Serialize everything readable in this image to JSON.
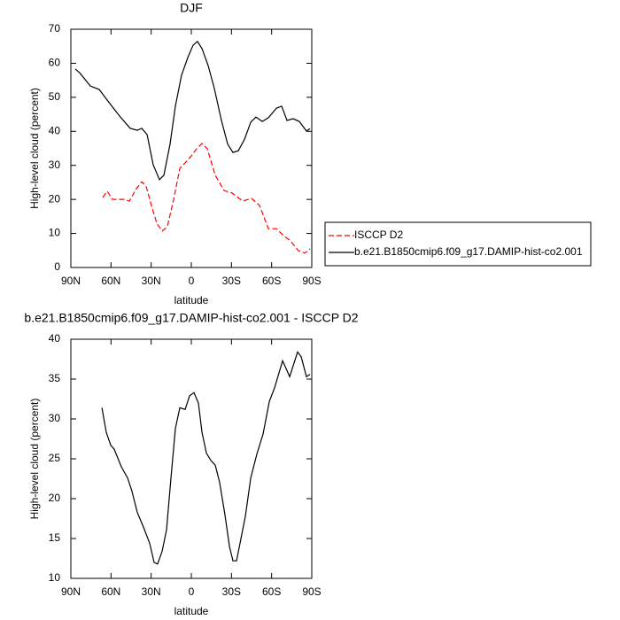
{
  "chart_data": [
    {
      "type": "line",
      "title": "DJF",
      "x_label": "latitude",
      "y_label": "High-level cloud (percent)",
      "xlim": [
        90,
        -90
      ],
      "xticks": [
        {
          "value": 90,
          "label": "90N"
        },
        {
          "value": 60,
          "label": "60N"
        },
        {
          "value": 30,
          "label": "30N"
        },
        0,
        {
          "value": -30,
          "label": "30S"
        },
        {
          "value": -60,
          "label": "60S"
        },
        {
          "value": -90,
          "label": "90S"
        }
      ],
      "ylim": [
        0,
        70
      ],
      "yticks": [
        0,
        10,
        20,
        30,
        40,
        50,
        60,
        70
      ],
      "legend": "right",
      "series": [
        {
          "name": "ISCCP D2",
          "color": "#ff0000",
          "dash": true,
          "x": [
            66.2,
            62.9,
            58.9,
            50.3,
            46.3,
            41,
            37,
            33.8,
            29.8,
            25.8,
            21.8,
            17.9,
            13.2,
            8.6,
            4,
            0,
            -4,
            -7.9,
            -11.9,
            -17.9,
            -24.5,
            -30.4,
            -38.4,
            -45,
            -51,
            -57.6,
            -63.6,
            -68.8,
            -74.1,
            -80.1,
            -84.7,
            -88.7
          ],
          "values": [
            20.6,
            22.4,
            20.0,
            20.0,
            19.5,
            23.2,
            25.2,
            23.9,
            18.2,
            13.0,
            10.7,
            12.0,
            20.0,
            29.1,
            31.0,
            32.8,
            34.9,
            36.4,
            34.9,
            27.1,
            22.6,
            21.9,
            19.5,
            20.3,
            18.2,
            11.4,
            11.4,
            9.4,
            7.8,
            4.9,
            4.2,
            5.5
          ]
        },
        {
          "name": "b.e21.B1850cmip6.f09_g17.DAMIP-hist-co2.001",
          "color": "#000000",
          "dash": false,
          "x": [
            86.7,
            83.4,
            75.4,
            68.8,
            63.5,
            53.6,
            45.7,
            40.4,
            37,
            33,
            28.5,
            23.8,
            20.5,
            15.9,
            11.9,
            7.3,
            2.6,
            -1.3,
            -4.6,
            -8,
            -12.6,
            -17.2,
            -22.5,
            -27.2,
            -31.1,
            -35.1,
            -39.8,
            -44.4,
            -48.3,
            -53,
            -57.6,
            -63.6,
            -67.5,
            -71.5,
            -76.1,
            -80.7,
            -86,
            -88.7
          ],
          "values": [
            58.3,
            57.2,
            53.3,
            52.3,
            49.5,
            44.5,
            40.9,
            40.3,
            40.9,
            39,
            30.2,
            25.8,
            27.1,
            36.2,
            47.4,
            56.5,
            61.7,
            65.3,
            66.4,
            64.3,
            59.3,
            52.6,
            43.2,
            36.2,
            33.8,
            34.3,
            37.7,
            42.7,
            44.2,
            42.9,
            44,
            46.8,
            47.4,
            43.2,
            43.7,
            42.9,
            40.1,
            40.8
          ]
        }
      ]
    },
    {
      "type": "line",
      "title": "b.e21.B1850cmip6.f09_g17.DAMIP-hist-co2.001 - ISCCP D2",
      "x_label": "latitude",
      "y_label": "High-level cloud (percent)",
      "xlim": [
        90,
        -90
      ],
      "xticks": [
        {
          "value": 90,
          "label": "90N"
        },
        {
          "value": 60,
          "label": "60N"
        },
        {
          "value": 30,
          "label": "30N"
        },
        0,
        {
          "value": -30,
          "label": "30S"
        },
        {
          "value": -60,
          "label": "60S"
        },
        {
          "value": -90,
          "label": "90S"
        }
      ],
      "ylim": [
        10,
        40
      ],
      "yticks": [
        10,
        15,
        20,
        25,
        30,
        35,
        40
      ],
      "series": [
        {
          "color": "#000000",
          "dash": false,
          "x": [
            66.8,
            63.5,
            60.2,
            57.6,
            52.3,
            47.6,
            44.3,
            40.4,
            35.7,
            31.1,
            27.8,
            25.2,
            21.8,
            18.5,
            15.2,
            11.9,
            8.6,
            4.6,
            1.3,
            -2,
            -5.3,
            -8,
            -11.3,
            -14.6,
            -17.9,
            -21.2,
            -25.2,
            -28.5,
            -31.1,
            -33.8,
            -37.1,
            -40.4,
            -44.4,
            -49,
            -53.6,
            -58.3,
            -62.2,
            -68.2,
            -73.5,
            -79.4,
            -82.1,
            -86,
            -88.7
          ],
          "values": [
            31.4,
            28.3,
            26.7,
            26.2,
            24.0,
            22.6,
            20.9,
            18.3,
            16.4,
            14.4,
            12.0,
            11.8,
            13.4,
            16.1,
            22.6,
            28.8,
            31.4,
            31.2,
            32.9,
            33.3,
            32.0,
            28.3,
            25.7,
            24.8,
            24.2,
            22.0,
            17.9,
            14.0,
            12.2,
            12.2,
            15.0,
            17.8,
            22.6,
            25.6,
            28.1,
            32.2,
            33.9,
            37.3,
            35.3,
            38.4,
            37.8,
            35.3,
            35.6
          ]
        }
      ]
    }
  ]
}
